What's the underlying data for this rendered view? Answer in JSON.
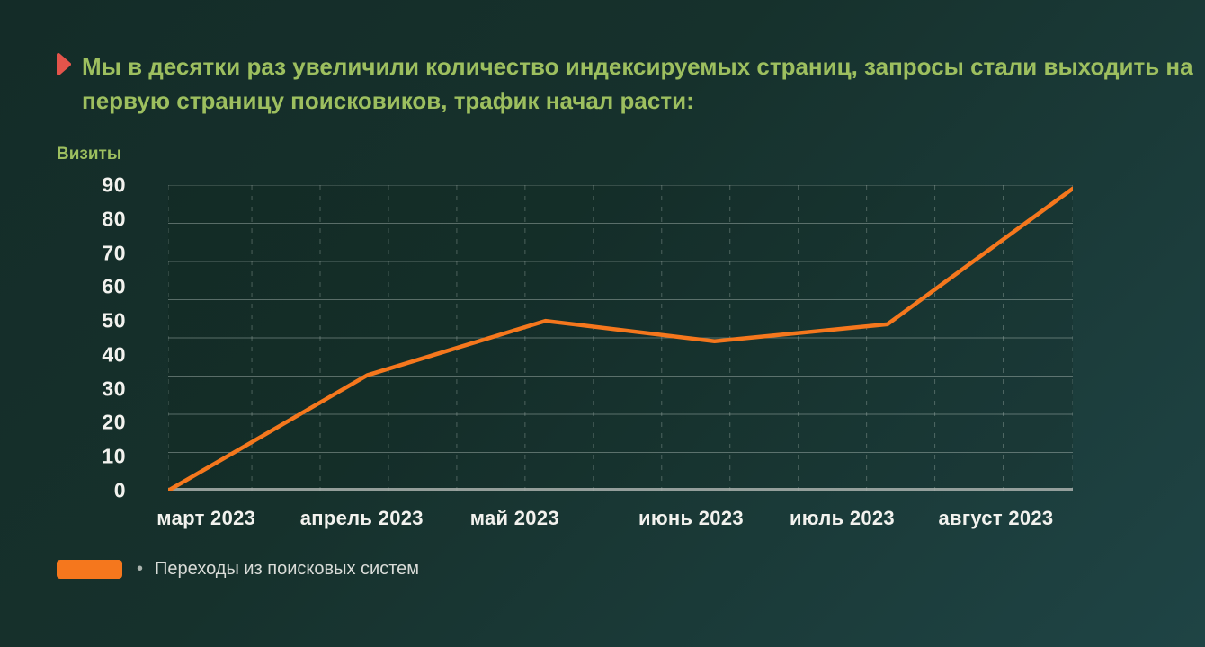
{
  "title": {
    "line1": "Мы в десятки раз увеличили количество индексируемых страниц, запросы стали выходить на",
    "line2": "первую страницу поисковиков, трафик начал расти:"
  },
  "legend": {
    "bullet": "•",
    "label": "Переходы из поисковых систем"
  },
  "colors": {
    "bg-dark": "#142C28",
    "bg-teal": "#1F4445",
    "title-green": "#9DBF5F",
    "marker-red": "#E4544B",
    "accent-orange": "#F5771D",
    "axis-text": "#F2F2EE",
    "legend-text": "#D9DCD8"
  },
  "chart_data": {
    "type": "line",
    "title": "Визиты",
    "ylabel": "Визиты",
    "categories": [
      "март 2023",
      "апрель 2023",
      "май 2023",
      "июнь 2023",
      "июль 2023",
      "август 2023"
    ],
    "series": [
      {
        "name": "Переходы из поисковых систем",
        "values": [
          0,
          34,
          50,
          44,
          49,
          89
        ],
        "x_pct": [
          0,
          22,
          41.7,
          60.4,
          79.5,
          100
        ]
      }
    ],
    "ylim": [
      0,
      90
    ],
    "yticks": [
      90,
      80,
      70,
      60,
      50,
      40,
      30,
      20,
      10,
      0
    ],
    "grid": {
      "horizontal": "solid",
      "vertical": "dashed",
      "h_rows": 8,
      "v_pct": [
        0,
        9.25,
        16.8,
        24.35,
        31.9,
        39.45,
        47,
        54.55,
        62.1,
        69.65,
        77.2,
        84.75,
        92.3,
        100
      ]
    },
    "layout_hints": {
      "legend_position": "bottom-left",
      "category_label_x_pct": [
        4.2,
        21.4,
        38.3,
        57.8,
        74.5,
        91.5
      ]
    }
  }
}
